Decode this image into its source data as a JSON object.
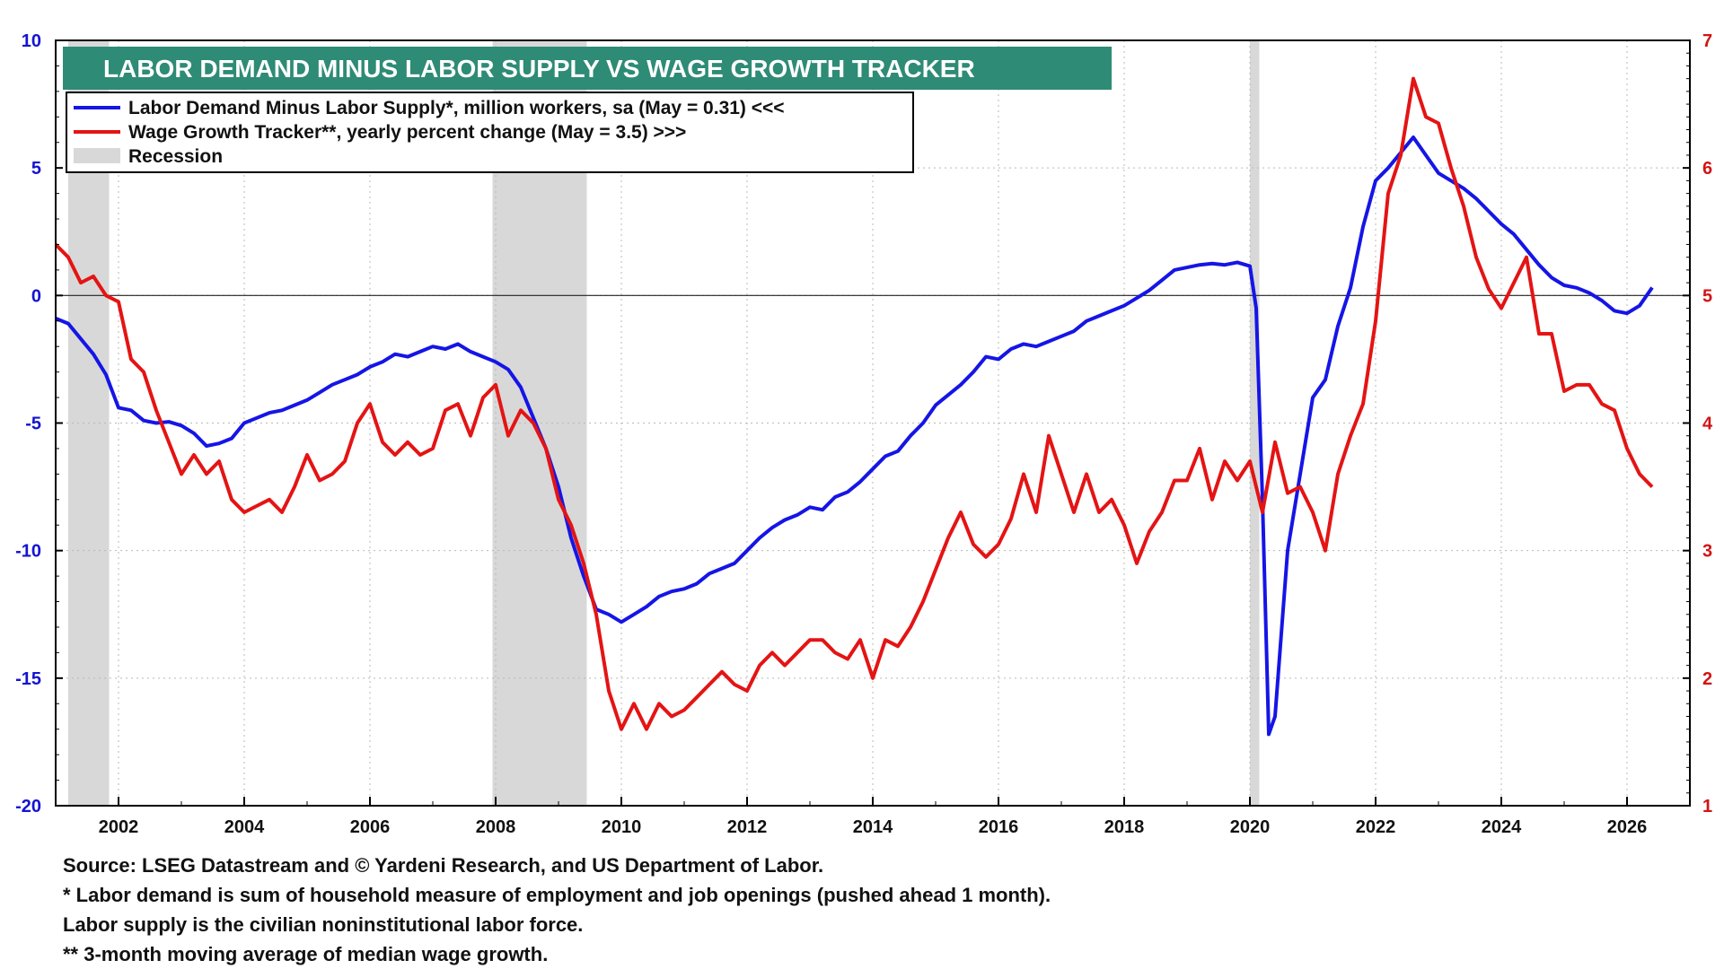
{
  "chart_data": {
    "type": "line",
    "title": "LABOR DEMAND MINUS  LABOR SUPPLY VS WAGE GROWTH TRACKER",
    "x_range": [
      2001.0,
      2027.0
    ],
    "x_ticks": [
      "2002",
      "2004",
      "2006",
      "2008",
      "2010",
      "2012",
      "2014",
      "2016",
      "2018",
      "2020",
      "2022",
      "2024",
      "2026"
    ],
    "y_left": {
      "range": [
        -20,
        10
      ],
      "ticks": [
        "10",
        "5",
        "0",
        "-5",
        "-10",
        "-15",
        "-20"
      ]
    },
    "y_right": {
      "range": [
        1,
        7
      ],
      "ticks": [
        "7",
        "6",
        "5",
        "4",
        "3",
        "2",
        "1"
      ]
    },
    "grid": true,
    "legend_position": "top-left",
    "recessions": [
      [
        2001.2,
        2001.85
      ],
      [
        2007.95,
        2009.45
      ],
      [
        2020.0,
        2020.15
      ]
    ],
    "series": [
      {
        "name": "Labor Demand Minus Labor Supply*, million workers, sa (May = 0.31) <<<",
        "axis": "left",
        "color": "#1515e6",
        "points": [
          [
            2001.0,
            -0.9
          ],
          [
            2001.2,
            -1.1
          ],
          [
            2001.4,
            -1.7
          ],
          [
            2001.6,
            -2.3
          ],
          [
            2001.8,
            -3.1
          ],
          [
            2002.0,
            -4.4
          ],
          [
            2002.2,
            -4.5
          ],
          [
            2002.4,
            -4.9
          ],
          [
            2002.6,
            -5.0
          ],
          [
            2002.8,
            -4.95
          ],
          [
            2003.0,
            -5.1
          ],
          [
            2003.2,
            -5.4
          ],
          [
            2003.4,
            -5.9
          ],
          [
            2003.6,
            -5.8
          ],
          [
            2003.8,
            -5.6
          ],
          [
            2004.0,
            -5.0
          ],
          [
            2004.2,
            -4.8
          ],
          [
            2004.4,
            -4.6
          ],
          [
            2004.6,
            -4.5
          ],
          [
            2004.8,
            -4.3
          ],
          [
            2005.0,
            -4.1
          ],
          [
            2005.2,
            -3.8
          ],
          [
            2005.4,
            -3.5
          ],
          [
            2005.6,
            -3.3
          ],
          [
            2005.8,
            -3.1
          ],
          [
            2006.0,
            -2.8
          ],
          [
            2006.2,
            -2.6
          ],
          [
            2006.4,
            -2.3
          ],
          [
            2006.6,
            -2.4
          ],
          [
            2006.8,
            -2.2
          ],
          [
            2007.0,
            -2.0
          ],
          [
            2007.2,
            -2.1
          ],
          [
            2007.4,
            -1.9
          ],
          [
            2007.6,
            -2.2
          ],
          [
            2007.8,
            -2.4
          ],
          [
            2008.0,
            -2.6
          ],
          [
            2008.2,
            -2.9
          ],
          [
            2008.4,
            -3.6
          ],
          [
            2008.6,
            -4.8
          ],
          [
            2008.8,
            -6.0
          ],
          [
            2009.0,
            -7.5
          ],
          [
            2009.2,
            -9.5
          ],
          [
            2009.4,
            -11.0
          ],
          [
            2009.6,
            -12.3
          ],
          [
            2009.8,
            -12.5
          ],
          [
            2010.0,
            -12.8
          ],
          [
            2010.2,
            -12.5
          ],
          [
            2010.4,
            -12.2
          ],
          [
            2010.6,
            -11.8
          ],
          [
            2010.8,
            -11.6
          ],
          [
            2011.0,
            -11.5
          ],
          [
            2011.2,
            -11.3
          ],
          [
            2011.4,
            -10.9
          ],
          [
            2011.6,
            -10.7
          ],
          [
            2011.8,
            -10.5
          ],
          [
            2012.0,
            -10.0
          ],
          [
            2012.2,
            -9.5
          ],
          [
            2012.4,
            -9.1
          ],
          [
            2012.6,
            -8.8
          ],
          [
            2012.8,
            -8.6
          ],
          [
            2013.0,
            -8.3
          ],
          [
            2013.2,
            -8.4
          ],
          [
            2013.4,
            -7.9
          ],
          [
            2013.6,
            -7.7
          ],
          [
            2013.8,
            -7.3
          ],
          [
            2014.0,
            -6.8
          ],
          [
            2014.2,
            -6.3
          ],
          [
            2014.4,
            -6.1
          ],
          [
            2014.6,
            -5.5
          ],
          [
            2014.8,
            -5.0
          ],
          [
            2015.0,
            -4.3
          ],
          [
            2015.2,
            -3.9
          ],
          [
            2015.4,
            -3.5
          ],
          [
            2015.6,
            -3.0
          ],
          [
            2015.8,
            -2.4
          ],
          [
            2016.0,
            -2.5
          ],
          [
            2016.2,
            -2.1
          ],
          [
            2016.4,
            -1.9
          ],
          [
            2016.6,
            -2.0
          ],
          [
            2016.8,
            -1.8
          ],
          [
            2017.0,
            -1.6
          ],
          [
            2017.2,
            -1.4
          ],
          [
            2017.4,
            -1.0
          ],
          [
            2017.6,
            -0.8
          ],
          [
            2017.8,
            -0.6
          ],
          [
            2018.0,
            -0.4
          ],
          [
            2018.2,
            -0.1
          ],
          [
            2018.4,
            0.2
          ],
          [
            2018.6,
            0.6
          ],
          [
            2018.8,
            1.0
          ],
          [
            2019.0,
            1.1
          ],
          [
            2019.2,
            1.2
          ],
          [
            2019.4,
            1.25
          ],
          [
            2019.6,
            1.2
          ],
          [
            2019.8,
            1.3
          ],
          [
            2020.0,
            1.15
          ],
          [
            2020.1,
            -0.5
          ],
          [
            2020.2,
            -8.0
          ],
          [
            2020.3,
            -17.2
          ],
          [
            2020.4,
            -16.5
          ],
          [
            2020.6,
            -10.0
          ],
          [
            2020.8,
            -7.0
          ],
          [
            2021.0,
            -4.0
          ],
          [
            2021.2,
            -3.3
          ],
          [
            2021.4,
            -1.2
          ],
          [
            2021.6,
            0.3
          ],
          [
            2021.8,
            2.7
          ],
          [
            2022.0,
            4.5
          ],
          [
            2022.2,
            5.0
          ],
          [
            2022.4,
            5.6
          ],
          [
            2022.6,
            6.2
          ],
          [
            2022.8,
            5.5
          ],
          [
            2023.0,
            4.8
          ],
          [
            2023.2,
            4.5
          ],
          [
            2023.4,
            4.2
          ],
          [
            2023.6,
            3.8
          ],
          [
            2023.8,
            3.3
          ],
          [
            2024.0,
            2.8
          ],
          [
            2024.2,
            2.4
          ],
          [
            2024.4,
            1.8
          ],
          [
            2024.6,
            1.2
          ],
          [
            2024.8,
            0.7
          ],
          [
            2025.0,
            0.4
          ],
          [
            2025.2,
            0.3
          ],
          [
            2025.4,
            0.1
          ],
          [
            2025.6,
            -0.2
          ],
          [
            2025.8,
            -0.6
          ],
          [
            2026.0,
            -0.7
          ],
          [
            2026.2,
            -0.4
          ],
          [
            2026.4,
            0.31
          ]
        ]
      },
      {
        "name": "Wage Growth Tracker**, yearly percent change (May = 3.5) >>>",
        "axis": "right",
        "color": "#e41414",
        "points": [
          [
            2001.0,
            5.4
          ],
          [
            2001.2,
            5.3
          ],
          [
            2001.4,
            5.1
          ],
          [
            2001.6,
            5.15
          ],
          [
            2001.8,
            5.0
          ],
          [
            2002.0,
            4.95
          ],
          [
            2002.2,
            4.5
          ],
          [
            2002.4,
            4.4
          ],
          [
            2002.6,
            4.1
          ],
          [
            2002.8,
            3.85
          ],
          [
            2003.0,
            3.6
          ],
          [
            2003.2,
            3.75
          ],
          [
            2003.4,
            3.6
          ],
          [
            2003.6,
            3.7
          ],
          [
            2003.8,
            3.4
          ],
          [
            2004.0,
            3.3
          ],
          [
            2004.2,
            3.35
          ],
          [
            2004.4,
            3.4
          ],
          [
            2004.6,
            3.3
          ],
          [
            2004.8,
            3.5
          ],
          [
            2005.0,
            3.75
          ],
          [
            2005.2,
            3.55
          ],
          [
            2005.4,
            3.6
          ],
          [
            2005.6,
            3.7
          ],
          [
            2005.8,
            4.0
          ],
          [
            2006.0,
            4.15
          ],
          [
            2006.2,
            3.85
          ],
          [
            2006.4,
            3.75
          ],
          [
            2006.6,
            3.85
          ],
          [
            2006.8,
            3.75
          ],
          [
            2007.0,
            3.8
          ],
          [
            2007.2,
            4.1
          ],
          [
            2007.4,
            4.15
          ],
          [
            2007.6,
            3.9
          ],
          [
            2007.8,
            4.2
          ],
          [
            2008.0,
            4.3
          ],
          [
            2008.2,
            3.9
          ],
          [
            2008.4,
            4.1
          ],
          [
            2008.6,
            4.0
          ],
          [
            2008.8,
            3.8
          ],
          [
            2009.0,
            3.4
          ],
          [
            2009.2,
            3.2
          ],
          [
            2009.4,
            2.9
          ],
          [
            2009.6,
            2.5
          ],
          [
            2009.8,
            1.9
          ],
          [
            2010.0,
            1.6
          ],
          [
            2010.2,
            1.8
          ],
          [
            2010.4,
            1.6
          ],
          [
            2010.6,
            1.8
          ],
          [
            2010.8,
            1.7
          ],
          [
            2011.0,
            1.75
          ],
          [
            2011.2,
            1.85
          ],
          [
            2011.4,
            1.95
          ],
          [
            2011.6,
            2.05
          ],
          [
            2011.8,
            1.95
          ],
          [
            2012.0,
            1.9
          ],
          [
            2012.2,
            2.1
          ],
          [
            2012.4,
            2.2
          ],
          [
            2012.6,
            2.1
          ],
          [
            2012.8,
            2.2
          ],
          [
            2013.0,
            2.3
          ],
          [
            2013.2,
            2.3
          ],
          [
            2013.4,
            2.2
          ],
          [
            2013.6,
            2.15
          ],
          [
            2013.8,
            2.3
          ],
          [
            2014.0,
            2.0
          ],
          [
            2014.2,
            2.3
          ],
          [
            2014.4,
            2.25
          ],
          [
            2014.6,
            2.4
          ],
          [
            2014.8,
            2.6
          ],
          [
            2015.0,
            2.85
          ],
          [
            2015.2,
            3.1
          ],
          [
            2015.4,
            3.3
          ],
          [
            2015.6,
            3.05
          ],
          [
            2015.8,
            2.95
          ],
          [
            2016.0,
            3.05
          ],
          [
            2016.2,
            3.25
          ],
          [
            2016.4,
            3.6
          ],
          [
            2016.6,
            3.3
          ],
          [
            2016.8,
            3.9
          ],
          [
            2017.0,
            3.6
          ],
          [
            2017.2,
            3.3
          ],
          [
            2017.4,
            3.6
          ],
          [
            2017.6,
            3.3
          ],
          [
            2017.8,
            3.4
          ],
          [
            2018.0,
            3.2
          ],
          [
            2018.2,
            2.9
          ],
          [
            2018.4,
            3.15
          ],
          [
            2018.6,
            3.3
          ],
          [
            2018.8,
            3.55
          ],
          [
            2019.0,
            3.55
          ],
          [
            2019.2,
            3.8
          ],
          [
            2019.4,
            3.4
          ],
          [
            2019.6,
            3.7
          ],
          [
            2019.8,
            3.55
          ],
          [
            2020.0,
            3.7
          ],
          [
            2020.2,
            3.3
          ],
          [
            2020.4,
            3.85
          ],
          [
            2020.6,
            3.45
          ],
          [
            2020.8,
            3.5
          ],
          [
            2021.0,
            3.3
          ],
          [
            2021.2,
            3.0
          ],
          [
            2021.4,
            3.6
          ],
          [
            2021.6,
            3.9
          ],
          [
            2021.8,
            4.15
          ],
          [
            2022.0,
            4.8
          ],
          [
            2022.2,
            5.8
          ],
          [
            2022.4,
            6.1
          ],
          [
            2022.6,
            6.7
          ],
          [
            2022.8,
            6.4
          ],
          [
            2023.0,
            6.35
          ],
          [
            2023.2,
            6.0
          ],
          [
            2023.4,
            5.7
          ],
          [
            2023.6,
            5.3
          ],
          [
            2023.8,
            5.05
          ],
          [
            2024.0,
            4.9
          ],
          [
            2024.2,
            5.1
          ],
          [
            2024.4,
            5.3
          ],
          [
            2024.6,
            4.7
          ],
          [
            2024.8,
            4.7
          ],
          [
            2025.0,
            4.25
          ],
          [
            2025.2,
            4.3
          ],
          [
            2025.4,
            4.3
          ],
          [
            2025.6,
            4.15
          ],
          [
            2025.8,
            4.1
          ],
          [
            2026.0,
            3.8
          ],
          [
            2026.2,
            3.6
          ],
          [
            2026.4,
            3.5
          ]
        ]
      }
    ],
    "legend": {
      "series1": "Labor Demand Minus Labor Supply*, million workers, sa (May = 0.31) <<<",
      "series2": "Wage Growth Tracker**, yearly percent change (May = 3.5) >>>",
      "recession": "Recession"
    }
  },
  "colors": {
    "title_bg": "#2e8b75",
    "labor_line": "#1515e6",
    "wage_line": "#e41414",
    "recession": "#d8d8d8",
    "left_axis": "#1414d2",
    "right_axis": "#d21414"
  },
  "notes": [
    "Source: LSEG Datastream and © Yardeni Research, and US Department of Labor.",
    "* Labor demand is sum of household measure of employment and job openings (pushed ahead 1 month).",
    "Labor supply is the civilian noninstitutional labor force.",
    "** 3-month moving average of median wage growth."
  ]
}
